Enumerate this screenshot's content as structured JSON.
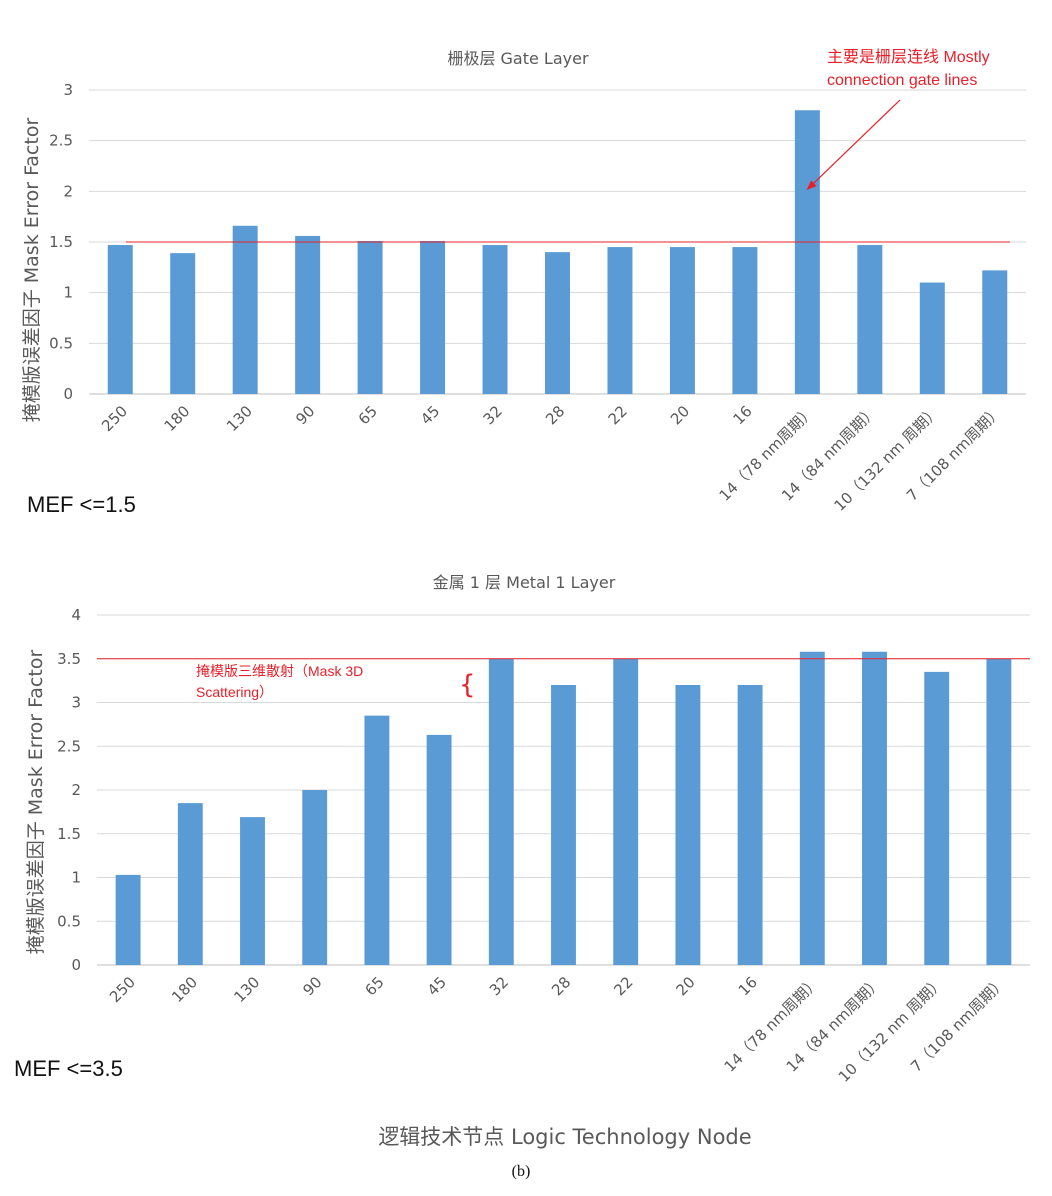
{
  "figure": {
    "x_axis_caption": "逻辑技术节点 Logic Technology Node",
    "panel_label": "(b)",
    "colors": {
      "bar": "#5b9bd5",
      "reference_line": "#e8202a",
      "annotation": "#e8202a"
    }
  },
  "chart_data": [
    {
      "type": "bar",
      "title": "栅极层 Gate Layer",
      "ylabel": "掩模版误差因子 Mask Error Factor",
      "xlabel": "",
      "ylim": [
        0,
        3
      ],
      "yticks": [
        "0",
        "0.5",
        "1",
        "1.5",
        "2",
        "2.5",
        "3"
      ],
      "grid": true,
      "categories": [
        "250",
        "180",
        "130",
        "90",
        "65",
        "45",
        "32",
        "28",
        "22",
        "20",
        "16",
        "14（78 nm周期）",
        "14（84 nm周期）",
        "10（132 nm 周期）",
        "7（108 nm周期）"
      ],
      "values": [
        1.47,
        1.39,
        1.66,
        1.56,
        1.51,
        1.51,
        1.47,
        1.4,
        1.45,
        1.45,
        1.45,
        2.8,
        1.47,
        1.1,
        1.22
      ],
      "reference_line": {
        "value": 1.5,
        "label": "MEF <=1.5"
      },
      "annotation": {
        "text_lines": [
          "主要是栅层连线 Mostly",
          "connection gate lines"
        ],
        "target_category": "14（78 nm周期）",
        "target_value": 2.0
      }
    },
    {
      "type": "bar",
      "title": "金属 1 层 Metal 1 Layer",
      "ylabel": "掩模版误差因子 Mask Error Factor",
      "xlabel": "",
      "ylim": [
        0,
        4
      ],
      "yticks": [
        "0",
        "0.5",
        "1",
        "1.5",
        "2",
        "2.5",
        "3",
        "3.5",
        "4"
      ],
      "grid": true,
      "categories": [
        "250",
        "180",
        "130",
        "90",
        "65",
        "45",
        "32",
        "28",
        "22",
        "20",
        "16",
        "14（78 nm周期）",
        "14（84 nm周期）",
        "10（132 nm 周期）",
        "7（108 nm周期）"
      ],
      "values": [
        1.03,
        1.85,
        1.69,
        2.0,
        2.85,
        2.63,
        3.5,
        3.2,
        3.5,
        3.2,
        3.2,
        3.58,
        3.58,
        3.35,
        3.5
      ],
      "reference_line": {
        "value": 3.5,
        "label": "MEF <=3.5"
      },
      "annotation": {
        "text_lines": [
          "掩模版三维散射（Mask 3D",
          "Scattering）"
        ],
        "brace": "{"
      }
    }
  ]
}
